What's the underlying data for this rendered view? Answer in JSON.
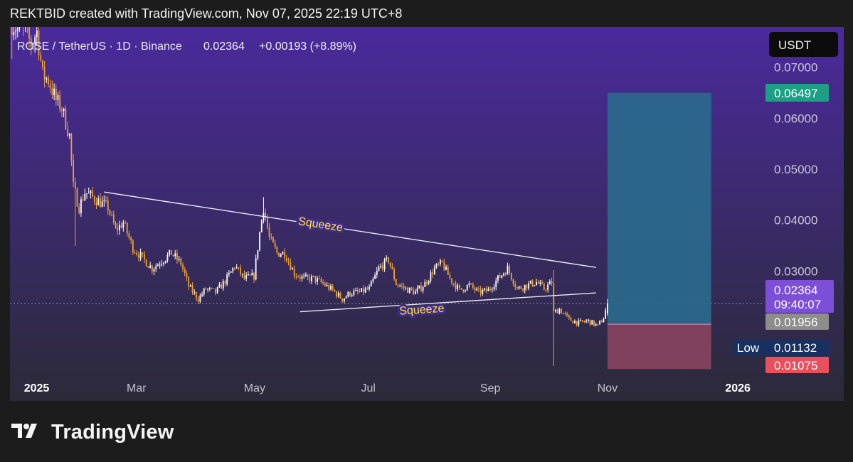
{
  "header": {
    "credit": "REKTBID created with TradingView.com, Nov 07, 2025 22:19 UTC+8"
  },
  "legend": {
    "symbol": "ROSE / TetherUS · 1D · Binance",
    "price": "0.02364",
    "change": "+0.00193 (+8.89%)"
  },
  "currency_button": "USDT",
  "brand": {
    "name": "TradingView",
    "icon": "tradingview-logo-icon"
  },
  "price_labels": {
    "target": "0.06497",
    "last": "0.02364",
    "countdown": "09:40:07",
    "entry": "0.01956",
    "low_tag": "Low",
    "low": "0.01132",
    "stop": "0.01075"
  },
  "colors": {
    "background_top": "#4a2a9c",
    "background_bottom": "#2b2a38",
    "candle_up": "#ffffff",
    "candle_down": "#f0a030",
    "target_zone": "#2b6a8e",
    "stop_zone": "#8a4460",
    "label_target": "#1d9f85",
    "label_last": "#7d4fd6",
    "label_entry": "#8d8d8d",
    "label_low": "#17305f",
    "label_stop": "#e8505f",
    "annotation": "#ffe04a"
  },
  "chart_data": {
    "type": "candlestick",
    "symbol": "ROSE/USDT",
    "interval": "1D",
    "exchange": "Binance",
    "y_ticks": [
      "0.07000",
      "0.06000",
      "0.05000",
      "0.04000",
      "0.03000"
    ],
    "y_tick_values": [
      0.07,
      0.06,
      0.05,
      0.04,
      0.03
    ],
    "x_ticks": [
      {
        "label": "2025",
        "date": "2025-01-01"
      },
      {
        "label": "Mar",
        "date": "2025-03-01"
      },
      {
        "label": "May",
        "date": "2025-05-01"
      },
      {
        "label": "Jul",
        "date": "2025-07-01"
      },
      {
        "label": "Sep",
        "date": "2025-09-01"
      },
      {
        "label": "Nov",
        "date": "2025-11-01"
      },
      {
        "label": "2026",
        "date": "2026-01-01"
      }
    ],
    "ylim": [
      0.0045,
      0.0779
    ],
    "xlim": [
      "2024-12-31",
      "2026-03-10"
    ],
    "close_path": [
      [
        "2025-01-01",
        0.0785
      ],
      [
        "2025-01-04",
        0.0775
      ],
      [
        "2025-01-08",
        0.077
      ],
      [
        "2025-01-11",
        0.0745
      ],
      [
        "2025-01-14",
        0.077
      ],
      [
        "2025-01-17",
        0.0685
      ],
      [
        "2025-01-20",
        0.0675
      ],
      [
        "2025-01-24",
        0.0635
      ],
      [
        "2025-01-27",
        0.062
      ],
      [
        "2025-01-31",
        0.0565
      ],
      [
        "2025-02-02",
        0.0465
      ],
      [
        "2025-02-05",
        0.0425
      ],
      [
        "2025-02-08",
        0.0455
      ],
      [
        "2025-02-12",
        0.0445
      ],
      [
        "2025-02-16",
        0.0435
      ],
      [
        "2025-02-20",
        0.0425
      ],
      [
        "2025-02-24",
        0.038
      ],
      [
        "2025-02-28",
        0.0395
      ],
      [
        "2025-03-05",
        0.0345
      ],
      [
        "2025-03-10",
        0.0325
      ],
      [
        "2025-03-15",
        0.0305
      ],
      [
        "2025-03-20",
        0.032
      ],
      [
        "2025-03-25",
        0.0335
      ],
      [
        "2025-03-30",
        0.0315
      ],
      [
        "2025-04-03",
        0.027
      ],
      [
        "2025-04-08",
        0.0245
      ],
      [
        "2025-04-12",
        0.0265
      ],
      [
        "2025-04-17",
        0.0258
      ],
      [
        "2025-04-22",
        0.028
      ],
      [
        "2025-04-27",
        0.031
      ],
      [
        "2025-05-02",
        0.0285
      ],
      [
        "2025-05-07",
        0.029
      ],
      [
        "2025-05-10",
        0.0375
      ],
      [
        "2025-05-12",
        0.0425
      ],
      [
        "2025-05-15",
        0.0365
      ],
      [
        "2025-05-19",
        0.0335
      ],
      [
        "2025-05-23",
        0.0335
      ],
      [
        "2025-05-28",
        0.0295
      ],
      [
        "2025-06-02",
        0.0285
      ],
      [
        "2025-06-07",
        0.0285
      ],
      [
        "2025-06-12",
        0.0275
      ],
      [
        "2025-06-17",
        0.0262
      ],
      [
        "2025-06-22",
        0.0245
      ],
      [
        "2025-06-26",
        0.0257
      ],
      [
        "2025-07-01",
        0.0258
      ],
      [
        "2025-07-06",
        0.0265
      ],
      [
        "2025-07-11",
        0.0305
      ],
      [
        "2025-07-16",
        0.0322
      ],
      [
        "2025-07-20",
        0.0275
      ],
      [
        "2025-07-25",
        0.0265
      ],
      [
        "2025-07-30",
        0.0258
      ],
      [
        "2025-08-04",
        0.0275
      ],
      [
        "2025-08-09",
        0.0305
      ],
      [
        "2025-08-13",
        0.0315
      ],
      [
        "2025-08-17",
        0.0285
      ],
      [
        "2025-08-22",
        0.0262
      ],
      [
        "2025-08-27",
        0.0272
      ],
      [
        "2025-09-01",
        0.0258
      ],
      [
        "2025-09-06",
        0.0262
      ],
      [
        "2025-09-11",
        0.0285
      ],
      [
        "2025-09-16",
        0.0305
      ],
      [
        "2025-09-21",
        0.0265
      ],
      [
        "2025-09-26",
        0.0272
      ],
      [
        "2025-10-01",
        0.0278
      ],
      [
        "2025-10-05",
        0.0265
      ],
      [
        "2025-10-09",
        0.0278
      ],
      [
        "2025-10-10",
        0.0218
      ],
      [
        "2025-10-13",
        0.0225
      ],
      [
        "2025-10-18",
        0.0205
      ],
      [
        "2025-10-23",
        0.0198
      ],
      [
        "2025-10-28",
        0.0202
      ],
      [
        "2025-11-02",
        0.0192
      ],
      [
        "2025-11-05",
        0.0208
      ],
      [
        "2025-11-07",
        0.0236
      ]
    ],
    "wick_events": [
      {
        "date": "2025-01-01",
        "low": 0.0716
      },
      {
        "date": "2025-02-03",
        "low": 0.0349
      },
      {
        "date": "2025-05-12",
        "high": 0.0445
      },
      {
        "date": "2025-10-10",
        "high": 0.0302,
        "low": 0.01132
      }
    ],
    "last_candle": {
      "date": "2025-11-07",
      "open": 0.0217,
      "high": 0.0245,
      "low": 0.0212,
      "close": 0.02364
    },
    "trendlines": [
      {
        "label": "Squeeze",
        "from": [
          "2025-02-18",
          0.0455
        ],
        "to": [
          "2025-11-01",
          0.0307
        ]
      },
      {
        "label": "Squeeze",
        "from": [
          "2025-05-31",
          0.022
        ],
        "to": [
          "2025-11-01",
          0.0257
        ]
      }
    ],
    "position_tool": {
      "side": "long",
      "start_date": "2025-11-07",
      "end_date": "2025-12-31",
      "entry": 0.01956,
      "target": 0.06497,
      "stop": 0.01075
    },
    "last_price": 0.02364,
    "low": 0.01132
  }
}
